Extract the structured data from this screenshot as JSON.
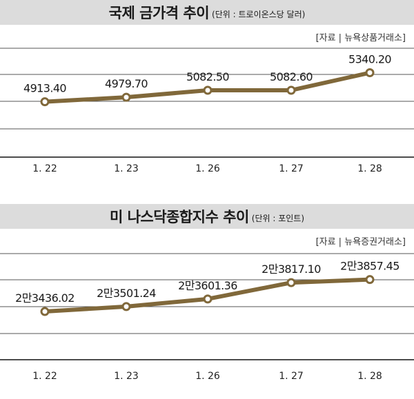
{
  "chart_data": [
    {
      "type": "line",
      "title": "국제 금가격 추이",
      "unit": "(단위 : 트로이온스당 달러)",
      "source": "[자료 | 뉴욕상품거래소]",
      "categories": [
        "1. 22",
        "1. 23",
        "1. 26",
        "1. 27",
        "1. 28"
      ],
      "values": [
        4913.4,
        4979.7,
        5082.5,
        5082.6,
        5340.2
      ],
      "data_labels": [
        "4913.40",
        "4979.70",
        "5082.50",
        "5082.60",
        "5340.20"
      ],
      "ylim": [
        4100,
        5700
      ],
      "grid": true,
      "color": "#80683a"
    },
    {
      "type": "line",
      "title": "미 나스닥종합지수 추이",
      "unit": "(단위 : 포인트)",
      "source": "[자료 | 뉴욕증권거래소]",
      "categories": [
        "1. 22",
        "1. 23",
        "1. 26",
        "1. 27",
        "1. 28"
      ],
      "values": [
        23436.02,
        23501.24,
        23601.36,
        23817.1,
        23857.45
      ],
      "data_labels": [
        "2만3436.02",
        "2만3501.24",
        "2만3601.36",
        "2만3817.10",
        "2만3857.45"
      ],
      "ylim": [
        22800,
        24200
      ],
      "grid": true,
      "color": "#80683a"
    }
  ]
}
